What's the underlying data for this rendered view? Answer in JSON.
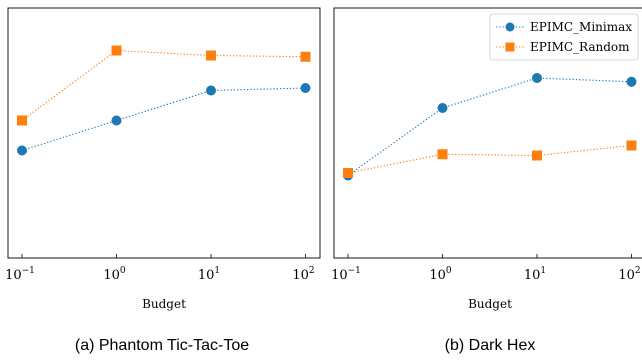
{
  "chart_data": [
    {
      "type": "line",
      "caption": "(a) Phantom Tic-Tac-Toe",
      "xlabel": "Budget",
      "xscale": "log",
      "x": [
        0.1,
        1,
        10,
        100
      ],
      "x_tick_labels": [
        {
          "base": "10",
          "exp": "−1"
        },
        {
          "base": "10",
          "exp": "0"
        },
        {
          "base": "10",
          "exp": "1"
        },
        {
          "base": "10",
          "exp": "2"
        }
      ],
      "ylim": [
        0,
        1
      ],
      "y_ticks_shown": false,
      "series": [
        {
          "name": "EPIMC_Minimax",
          "color": "#1f77b4",
          "marker": "circle",
          "linestyle": "dotted",
          "values": [
            0.43,
            0.55,
            0.67,
            0.68
          ],
          "errors": [
            0.02,
            0.02,
            0.02,
            0.02
          ]
        },
        {
          "name": "EPIMC_Random",
          "color": "#ff7f0e",
          "marker": "square",
          "linestyle": "dotted",
          "values": [
            0.55,
            0.83,
            0.81,
            0.805
          ],
          "errors": [
            0.02,
            0.015,
            0.015,
            0.015
          ]
        }
      ],
      "legend": false
    },
    {
      "type": "line",
      "caption": "(b) Dark Hex",
      "xlabel": "Budget",
      "xscale": "log",
      "x": [
        0.1,
        1,
        10,
        100
      ],
      "x_tick_labels": [
        {
          "base": "10",
          "exp": "−1"
        },
        {
          "base": "10",
          "exp": "0"
        },
        {
          "base": "10",
          "exp": "1"
        },
        {
          "base": "10",
          "exp": "2"
        }
      ],
      "ylim": [
        0,
        1
      ],
      "y_ticks_shown": false,
      "series": [
        {
          "name": "EPIMC_Minimax",
          "color": "#1f77b4",
          "marker": "circle",
          "linestyle": "dotted",
          "values": [
            0.33,
            0.6,
            0.72,
            0.705
          ],
          "errors": [
            0.02,
            0.02,
            0.02,
            0.02
          ]
        },
        {
          "name": "EPIMC_Random",
          "color": "#ff7f0e",
          "marker": "square",
          "linestyle": "dotted",
          "values": [
            0.34,
            0.415,
            0.41,
            0.45
          ],
          "errors": [
            0.02,
            0.02,
            0.02,
            0.02
          ]
        }
      ],
      "legend": true,
      "legend_position": "top-right"
    }
  ]
}
